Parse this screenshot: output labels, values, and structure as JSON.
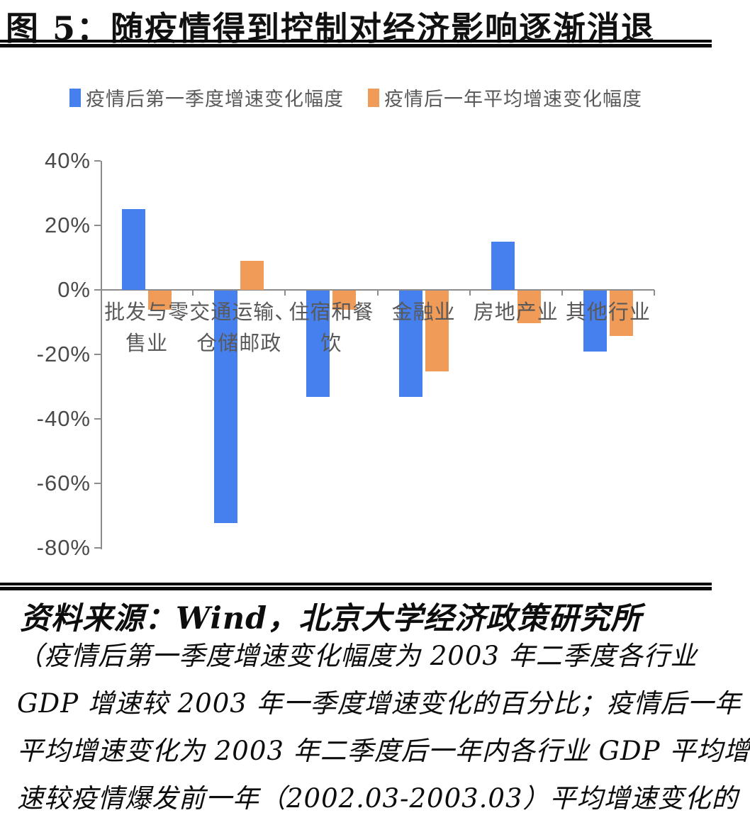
{
  "title": "图 5：随疫情得到控制对经济影响逐渐消退",
  "legend": {
    "items": [
      {
        "label": "疫情后第一季度增速变化幅度",
        "color": "#4680ee"
      },
      {
        "label": "疫情后一年平均增速变化幅度",
        "color": "#f09b57"
      }
    ]
  },
  "chart_data": {
    "type": "bar",
    "categories": [
      "批发与零售业",
      "交通运输、仓储邮政",
      "住宿和餐饮",
      "金融业",
      "房地产业",
      "其他行业"
    ],
    "category_label_lines": [
      [
        "批发与零",
        "售业"
      ],
      [
        "交通运输、",
        "仓储邮政"
      ],
      [
        "住宿和餐",
        "饮"
      ],
      [
        "金融业"
      ],
      [
        "房地产业"
      ],
      [
        "其他行业"
      ]
    ],
    "series": [
      {
        "name": "疫情后第一季度增速变化幅度",
        "color": "#4680ee",
        "values": [
          25,
          -72,
          -33,
          -33,
          15,
          -19
        ]
      },
      {
        "name": "疫情后一年平均增速变化幅度",
        "color": "#f09b57",
        "values": [
          -6,
          9,
          -6,
          -25,
          -10,
          -14
        ]
      }
    ],
    "y_ticks": [
      "40%",
      "20%",
      "0%",
      "-20%",
      "-40%",
      "-60%",
      "-80%"
    ],
    "ylim": [
      -80,
      40
    ],
    "unit": "%",
    "grid": "off",
    "legend_position": "top",
    "axis_color": "#8c8c8c"
  },
  "footer": {
    "source": "资料来源：Wind，北京大学经济政策研究所",
    "note_lines": [
      "（疫情后第一季度增速变化幅度为 2003 年二季度各行业",
      "GDP 增速较 2003 年一季度增速变化的百分比；疫情后一年",
      "平均增速变化为 2003 年二季度后一年内各行业 GDP 平均增",
      "速较疫情爆发前一年（2002.03-2003.03）平均增速变化的"
    ]
  }
}
